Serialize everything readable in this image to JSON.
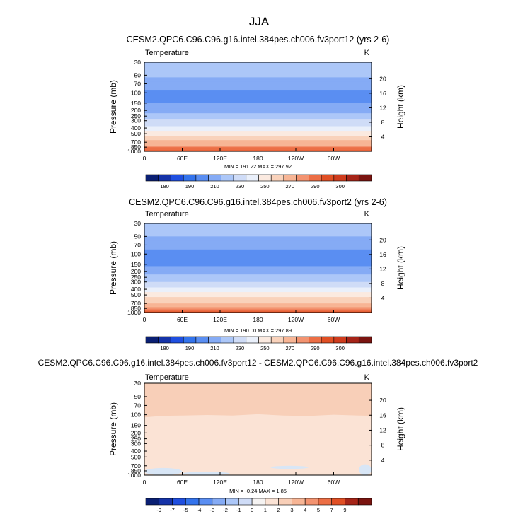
{
  "figure": {
    "title": "JJA"
  },
  "colors": {
    "abs_levels": [
      "#0a1f73",
      "#1533a8",
      "#1f4fe0",
      "#3373ec",
      "#5a8ef2",
      "#85abf5",
      "#acc7f8",
      "#cfdcf7",
      "#eaf0fb",
      "#fbeae0",
      "#f9d2bb",
      "#f7b595",
      "#f39370",
      "#ec6e45",
      "#e04f24",
      "#cf3c1d",
      "#a62418",
      "#7a1410"
    ],
    "diff_bg": "#fbe3d5",
    "diff_top": "#f8cfb8",
    "diff_neg": "#d8e6f6",
    "frame": "#000000"
  },
  "chart_data": [
    {
      "type": "contour",
      "id": "panel1",
      "title": "CESM2.QPC6.C96.C96.g16.intel.384pes.ch006.fv3port12 (yrs 2-6)",
      "left_label": "Temperature",
      "right_label": "K",
      "ylabel": "Pressure (mb)",
      "y2label": "Height (km)",
      "x_ticks": [
        "0",
        "60E",
        "120E",
        "180",
        "120W",
        "60W"
      ],
      "x_tick_lon": [
        0,
        60,
        120,
        180,
        240,
        300
      ],
      "xlim": [
        0,
        360
      ],
      "y_ticks": [
        "30",
        "50",
        "70",
        "100",
        "150",
        "200",
        "250",
        "300",
        "400",
        "500",
        "700",
        "850",
        "1000"
      ],
      "pressure_levels": [
        30,
        50,
        70,
        100,
        150,
        200,
        250,
        300,
        400,
        500,
        700,
        850,
        1000
      ],
      "plim": [
        30,
        1000
      ],
      "height_ticks": [
        "4",
        "8",
        "12",
        "16",
        "20"
      ],
      "height_km": [
        4,
        8,
        12,
        16,
        20
      ],
      "stats": "MIN = 191.22   MAX = 297.92",
      "colorbar_labels": [
        "180",
        "190",
        "210",
        "230",
        "250",
        "270",
        "290",
        "300"
      ],
      "profile": [
        {
          "p": 30,
          "T": 227
        },
        {
          "p": 50,
          "T": 221
        },
        {
          "p": 70,
          "T": 215
        },
        {
          "p": 100,
          "T": 208
        },
        {
          "p": 150,
          "T": 210
        },
        {
          "p": 200,
          "T": 217
        },
        {
          "p": 250,
          "T": 224
        },
        {
          "p": 300,
          "T": 231
        },
        {
          "p": 400,
          "T": 245
        },
        {
          "p": 500,
          "T": 256
        },
        {
          "p": 700,
          "T": 273
        },
        {
          "p": 850,
          "T": 284
        },
        {
          "p": 1000,
          "T": 292
        }
      ]
    },
    {
      "type": "contour",
      "id": "panel2",
      "title": "CESM2.QPC6.C96.C96.g16.intel.384pes.ch006.fv3port2 (yrs 2-6)",
      "left_label": "Temperature",
      "right_label": "K",
      "ylabel": "Pressure (mb)",
      "y2label": "Height (km)",
      "x_ticks": [
        "0",
        "60E",
        "120E",
        "180",
        "120W",
        "60W"
      ],
      "x_tick_lon": [
        0,
        60,
        120,
        180,
        240,
        300
      ],
      "xlim": [
        0,
        360
      ],
      "y_ticks": [
        "30",
        "50",
        "70",
        "100",
        "150",
        "200",
        "250",
        "300",
        "400",
        "500",
        "700",
        "850",
        "1000"
      ],
      "pressure_levels": [
        30,
        50,
        70,
        100,
        150,
        200,
        250,
        300,
        400,
        500,
        700,
        850,
        1000
      ],
      "plim": [
        30,
        1000
      ],
      "height_ticks": [
        "4",
        "8",
        "12",
        "16",
        "20"
      ],
      "height_km": [
        4,
        8,
        12,
        16,
        20
      ],
      "stats": "MIN = 190.00   MAX = 297.89",
      "colorbar_labels": [
        "180",
        "190",
        "210",
        "230",
        "250",
        "270",
        "290",
        "300"
      ],
      "profile": [
        {
          "p": 30,
          "T": 226
        },
        {
          "p": 50,
          "T": 220
        },
        {
          "p": 70,
          "T": 214
        },
        {
          "p": 100,
          "T": 207
        },
        {
          "p": 150,
          "T": 209
        },
        {
          "p": 200,
          "T": 216
        },
        {
          "p": 250,
          "T": 223
        },
        {
          "p": 300,
          "T": 230
        },
        {
          "p": 400,
          "T": 244
        },
        {
          "p": 500,
          "T": 255
        },
        {
          "p": 700,
          "T": 272
        },
        {
          "p": 850,
          "T": 283
        },
        {
          "p": 1000,
          "T": 291
        }
      ]
    },
    {
      "type": "contour",
      "id": "panel3",
      "title": "CESM2.QPC6.C96.C96.g16.intel.384pes.ch006.fv3port12 - CESM2.QPC6.C96.C96.g16.intel.384pes.ch006.fv3port2",
      "left_label": "Temperature",
      "right_label": "K",
      "ylabel": "Pressure (mb)",
      "y2label": "Height (km)",
      "x_ticks": [
        "0",
        "60E",
        "120E",
        "180",
        "120W",
        "60W"
      ],
      "x_tick_lon": [
        0,
        60,
        120,
        180,
        240,
        300
      ],
      "xlim": [
        0,
        360
      ],
      "y_ticks": [
        "30",
        "50",
        "70",
        "100",
        "150",
        "200",
        "250",
        "300",
        "400",
        "500",
        "700",
        "850",
        "1000"
      ],
      "pressure_levels": [
        30,
        50,
        70,
        100,
        150,
        200,
        250,
        300,
        400,
        500,
        700,
        850,
        1000
      ],
      "plim": [
        30,
        1000
      ],
      "height_ticks": [
        "4",
        "8",
        "12",
        "16",
        "20"
      ],
      "height_km": [
        4,
        8,
        12,
        16,
        20
      ],
      "stats": "MIN = -0.24   MAX =  1.85",
      "colorbar_labels": [
        "-9",
        "-7",
        "-5",
        "-4",
        "-3",
        "-2",
        "-1",
        "0",
        "1",
        "2",
        "3",
        "4",
        "5",
        "7",
        "9"
      ],
      "diff_upper_boundary_p": [
        {
          "lon": 0,
          "p": 110
        },
        {
          "lon": 30,
          "p": 104
        },
        {
          "lon": 60,
          "p": 103
        },
        {
          "lon": 100,
          "p": 101
        },
        {
          "lon": 140,
          "p": 103
        },
        {
          "lon": 180,
          "p": 98
        },
        {
          "lon": 220,
          "p": 103
        },
        {
          "lon": 260,
          "p": 105
        },
        {
          "lon": 300,
          "p": 100
        },
        {
          "lon": 340,
          "p": 103
        },
        {
          "lon": 360,
          "p": 104
        }
      ],
      "diff_negative_regions": [
        {
          "lon": [
            0,
            60
          ],
          "p": [
            760,
            1000
          ]
        },
        {
          "lon": [
            60,
            135
          ],
          "p": [
            880,
            1000
          ]
        },
        {
          "lon": [
            200,
            260
          ],
          "p": [
            700,
            790
          ]
        },
        {
          "lon": [
            340,
            360
          ],
          "p": [
            660,
            1000
          ]
        }
      ]
    }
  ]
}
